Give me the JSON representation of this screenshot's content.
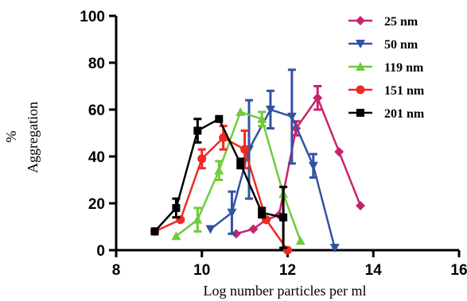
{
  "chart_data": {
    "type": "line",
    "title": "",
    "xlabel": "Log number particles per ml",
    "ylabel_line1": "%",
    "ylabel_line2": "Aggregation",
    "xlim": [
      8,
      16
    ],
    "ylim": [
      0,
      100
    ],
    "x_ticks": [
      "8",
      "10",
      "12",
      "14",
      "16"
    ],
    "y_ticks": [
      "0",
      "20",
      "40",
      "60",
      "80",
      "100"
    ],
    "grid": false,
    "legend_position": "top-right",
    "series": [
      {
        "name": "25 nm",
        "color": "#c8246e",
        "marker": "diamond",
        "points": [
          {
            "x": 10.8,
            "y": 7,
            "err": 0
          },
          {
            "x": 11.2,
            "y": 9,
            "err": 0
          },
          {
            "x": 11.5,
            "y": 13,
            "err": 0
          },
          {
            "x": 11.8,
            "y": 15,
            "err": 0
          },
          {
            "x": 12.2,
            "y": 52,
            "err": 3
          },
          {
            "x": 12.7,
            "y": 65,
            "err": 5
          },
          {
            "x": 13.2,
            "y": 42,
            "err": 0
          },
          {
            "x": 13.7,
            "y": 19,
            "err": 0
          }
        ]
      },
      {
        "name": "50 nm",
        "color": "#3252a4",
        "marker": "triangle-down",
        "points": [
          {
            "x": 10.2,
            "y": 9,
            "err": 0
          },
          {
            "x": 10.7,
            "y": 16,
            "err": 9
          },
          {
            "x": 11.1,
            "y": 43,
            "err": 21
          },
          {
            "x": 11.6,
            "y": 60,
            "err": 8
          },
          {
            "x": 12.1,
            "y": 57,
            "err": 20
          },
          {
            "x": 12.6,
            "y": 36,
            "err": 5
          },
          {
            "x": 13.1,
            "y": 1,
            "err": 0
          }
        ]
      },
      {
        "name": "119 nm",
        "color": "#6fcc3c",
        "marker": "triangle-up",
        "points": [
          {
            "x": 9.4,
            "y": 6,
            "err": 0
          },
          {
            "x": 9.9,
            "y": 13,
            "err": 5
          },
          {
            "x": 10.4,
            "y": 34,
            "err": 4
          },
          {
            "x": 10.9,
            "y": 59,
            "err": 0
          },
          {
            "x": 11.4,
            "y": 56,
            "err": 3
          },
          {
            "x": 11.9,
            "y": 24,
            "err": 0
          },
          {
            "x": 12.3,
            "y": 4,
            "err": 0
          }
        ]
      },
      {
        "name": "151 nm",
        "color": "#ee2a24",
        "marker": "circle",
        "points": [
          {
            "x": 8.9,
            "y": 8,
            "err": 0
          },
          {
            "x": 9.5,
            "y": 13,
            "err": 0
          },
          {
            "x": 10.0,
            "y": 39,
            "err": 4
          },
          {
            "x": 10.5,
            "y": 48,
            "err": 5
          },
          {
            "x": 11.0,
            "y": 43,
            "err": 8
          },
          {
            "x": 11.5,
            "y": 13,
            "err": 0
          },
          {
            "x": 12.0,
            "y": 0,
            "err": 0
          }
        ]
      },
      {
        "name": "201 nm",
        "color": "#000000",
        "marker": "square",
        "points": [
          {
            "x": 8.9,
            "y": 8,
            "err": 0
          },
          {
            "x": 9.4,
            "y": 18,
            "err": 4
          },
          {
            "x": 9.9,
            "y": 51,
            "err": 5
          },
          {
            "x": 10.4,
            "y": 56,
            "err": 0
          },
          {
            "x": 10.9,
            "y": 37,
            "err": 2
          },
          {
            "x": 11.4,
            "y": 16,
            "err": 2
          },
          {
            "x": 11.9,
            "y": 14,
            "err": 13
          }
        ]
      }
    ]
  }
}
